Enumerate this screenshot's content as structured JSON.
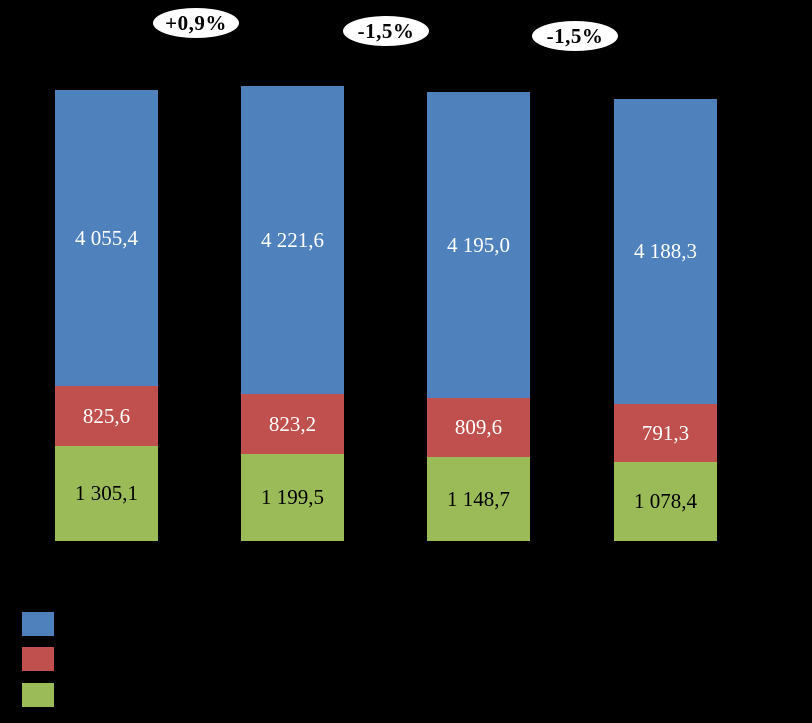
{
  "chart_data": {
    "type": "bar",
    "variant": "stacked-column",
    "background_color": "#000000",
    "title": "",
    "bar_count": 4,
    "series": [
      {
        "name": "top-segment-blue",
        "color": "#4F81BD",
        "label_color": "#FFFFFF",
        "values": [
          4055.4,
          4221.6,
          4195.0,
          4188.3
        ],
        "labels": [
          "4 055,4",
          "4 221,6",
          "4 195,0",
          "4 188,3"
        ]
      },
      {
        "name": "middle-segment-red",
        "color": "#C0504D",
        "label_color": "#FFFFFF",
        "values": [
          825.6,
          823.2,
          809.6,
          791.3
        ],
        "labels": [
          "825,6",
          "823,2",
          "809,6",
          "791,3"
        ]
      },
      {
        "name": "bottom-segment-green",
        "color": "#9BBB59",
        "label_color": "#000000",
        "values": [
          1305.1,
          1199.5,
          1148.7,
          1078.4
        ],
        "labels": [
          "1 305,1",
          "1 199,5",
          "1 148,7",
          "1 078,4"
        ]
      }
    ],
    "annotations": [
      "+0,9%",
      "-1,5%",
      "-1,5%"
    ],
    "annotation_style": {
      "shape": "ellipse",
      "fill": "#FFFFFF",
      "text_color": "#000000"
    },
    "legend": {
      "position": "bottom-left",
      "entries": [
        {
          "swatch_color": "#4F81BD",
          "label": ""
        },
        {
          "swatch_color": "#C0504D",
          "label": ""
        },
        {
          "swatch_color": "#9BBB59",
          "label": ""
        }
      ]
    }
  }
}
